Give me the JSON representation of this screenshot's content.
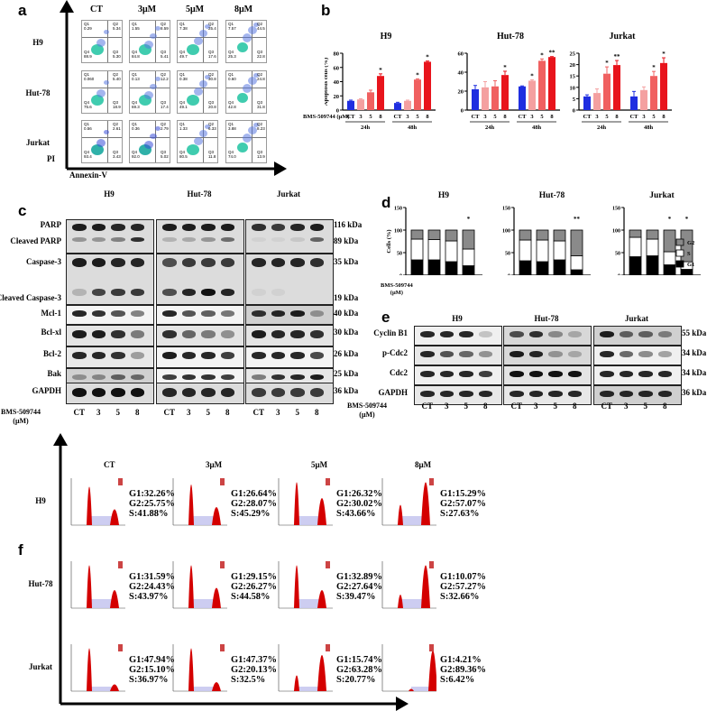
{
  "panels": {
    "a": {
      "label": "a",
      "columns": [
        "CT",
        "3μM",
        "5μM",
        "8μM"
      ],
      "rows": [
        "H9",
        "Hut-78",
        "Jurkat"
      ],
      "y_axis": "PI",
      "x_axis": "Annexin-V",
      "quadrants": [
        [
          {
            "Q1": "0.29",
            "Q2": "5.34",
            "Q3": "5.30",
            "Q4": "88.9"
          },
          {
            "Q1": "1.55",
            "Q2": "8.59",
            "Q3": "5.41",
            "Q4": "84.8"
          },
          {
            "Q1": "7.38",
            "Q2": "25.4",
            "Q3": "17.6",
            "Q4": "49.7"
          },
          {
            "Q1": "7.57",
            "Q2": "44.5",
            "Q3": "22.8",
            "Q4": "25.3"
          }
        ],
        [
          {
            "Q1": "0.060",
            "Q2": "5.40",
            "Q3": "18.9",
            "Q4": "75.6"
          },
          {
            "Q1": "0.13",
            "Q2": "12.2",
            "Q3": "17.4",
            "Q4": "69.3"
          },
          {
            "Q1": "0.38",
            "Q2": "30.8",
            "Q3": "20.8",
            "Q4": "49.1"
          },
          {
            "Q1": "0.60",
            "Q2": "24.8",
            "Q3": "31.8",
            "Q4": "42.8"
          }
        ],
        [
          {
            "Q1": "0.56",
            "Q2": "2.61",
            "Q3": "3.43",
            "Q4": "93.4"
          },
          {
            "Q1": "0.36",
            "Q2": "2.79",
            "Q3": "5.02",
            "Q4": "92.0"
          },
          {
            "Q1": "1.33",
            "Q2": "6.33",
            "Q3": "11.8",
            "Q4": "80.5"
          },
          {
            "Q1": "3.88",
            "Q2": "8.23",
            "Q3": "13.9",
            "Q4": "74.0"
          }
        ]
      ]
    },
    "b": {
      "label": "b",
      "treatment_label": "BMS-509744 (μM)"
    },
    "c": {
      "label": "c",
      "cell_lines": [
        "H9",
        "Hut-78",
        "Jurkat"
      ],
      "proteins": [
        "PARP",
        "Cleaved PARP",
        "Caspase-3",
        "Cleaved Caspase-3",
        "Mcl-1",
        "Bcl-xl",
        "Bcl-2",
        "Bak",
        "GAPDH"
      ],
      "kda": [
        "116 kDa",
        "89 kDa",
        "35 kDa",
        "19 kDa",
        "40 kDa",
        "30 kDa",
        "26 kDa",
        "25 kDa",
        "36 kDa"
      ],
      "treatment_label": "BMS-509744",
      "treatment_unit": "(μM)",
      "doses": [
        "CT",
        "3",
        "5",
        "8"
      ]
    },
    "d": {
      "label": "d",
      "ylabel": "Cells (%)",
      "treatment_label": "BMS-509744",
      "treatment_unit": "(μM)",
      "legend": [
        "G2",
        "S",
        "G1"
      ]
    },
    "e": {
      "label": "e",
      "cell_lines": [
        "H9",
        "Hut-78",
        "Jurkat"
      ],
      "proteins": [
        "Cyclin B1",
        "p-Cdc2",
        "Cdc2",
        "GAPDH"
      ],
      "kda": [
        "55 kDa",
        "34 kDa",
        "34 kDa",
        "36 kDa"
      ],
      "treatment_label": "BMS-509744",
      "treatment_unit": "(μM)",
      "doses": [
        "CT",
        "3",
        "5",
        "8"
      ]
    },
    "f": {
      "label": "f",
      "columns": [
        "CT",
        "3μM",
        "5μM",
        "8μM"
      ],
      "rows": [
        "H9",
        "Hut-78",
        "Jurkat"
      ],
      "values": [
        [
          [
            "G1:32.26%",
            "G2:25.75%",
            "S:41.88%"
          ],
          [
            "G1:26.64%",
            "G2:28.07%",
            "S:45.29%"
          ],
          [
            "G1:26.32%",
            "G2:30.02%",
            "S:43.66%"
          ],
          [
            "G1:15.29%",
            "G2:57.07%",
            "S:27.63%"
          ]
        ],
        [
          [
            "G1:31.59%",
            "G2:24.43%",
            "S:43.97%"
          ],
          [
            "G1:29.15%",
            "G2:26.27%",
            "S:44.58%"
          ],
          [
            "G1:32.89%",
            "G2:27.64%",
            "S:39.47%"
          ],
          [
            "G1:10.07%",
            "G2:57.27%",
            "S:32.66%"
          ]
        ],
        [
          [
            "G1:47.94%",
            "G2:15.10%",
            "S:36.97%"
          ],
          [
            "G1:47.37%",
            "G2:20.13%",
            "S:32.5%"
          ],
          [
            "G1:15.74%",
            "G2:63.28%",
            "S:20.77%"
          ],
          [
            "G1:4.21%",
            "G2:89.36%",
            "S:6.42%"
          ]
        ]
      ]
    }
  },
  "colors": {
    "ct": "#1f2ee0",
    "d3": "#f4a0a0",
    "d5": "#f06060",
    "d8": "#e8141c",
    "g2": "#8a8a8a",
    "s": "#ffffff",
    "g1": "#000000",
    "hist_fill": "#d40000",
    "hist_s": "#c8c8f0"
  },
  "chart_data": [
    {
      "type": "bar",
      "title": "H9",
      "ylabel": "Apoptosis cells (%)",
      "ylim": [
        0,
        80
      ],
      "yticks": [
        0,
        20,
        40,
        60,
        80
      ],
      "categories": [
        "CT",
        "3",
        "5",
        "8",
        "CT",
        "3",
        "5",
        "8"
      ],
      "groups": [
        "24h",
        "48h"
      ],
      "values": [
        13,
        15,
        25,
        48,
        10,
        13,
        43,
        68
      ],
      "errors": [
        1,
        1,
        3,
        3,
        1,
        1,
        1,
        1
      ],
      "significance": [
        "",
        "",
        "",
        "*",
        "",
        "",
        "*",
        "*"
      ]
    },
    {
      "type": "bar",
      "title": "Hut-78",
      "ylabel": "Apoptosis cells (%)",
      "ylim": [
        0,
        60
      ],
      "yticks": [
        0,
        20,
        40,
        60
      ],
      "categories": [
        "CT",
        "3",
        "5",
        "8",
        "CT",
        "3",
        "5",
        "8"
      ],
      "groups": [
        "24h",
        "48h"
      ],
      "values": [
        22,
        24,
        25,
        37,
        25,
        31,
        52,
        56
      ],
      "errors": [
        4,
        6,
        6,
        4,
        0.5,
        1,
        2,
        0.5
      ],
      "significance": [
        "",
        "",
        "",
        "*",
        "",
        "*",
        "*",
        "**"
      ]
    },
    {
      "type": "bar",
      "title": "Jurkat",
      "ylabel": "Apoptosis cells (%)",
      "ylim": [
        0,
        25
      ],
      "yticks": [
        0,
        5,
        10,
        15,
        20,
        25
      ],
      "categories": [
        "CT",
        "3",
        "5",
        "8",
        "CT",
        "3",
        "5",
        "8"
      ],
      "groups": [
        "24h",
        "48h"
      ],
      "values": [
        6,
        7.5,
        16,
        19.8,
        6,
        8.8,
        15,
        20.7
      ],
      "errors": [
        0.7,
        1.8,
        3,
        2,
        2.2,
        1.4,
        2,
        2.3
      ],
      "significance": [
        "",
        "",
        "*",
        "**",
        "",
        "",
        "*",
        "*"
      ]
    },
    {
      "type": "bar",
      "stacked": true,
      "title": "H9",
      "ylabel": "Cells (%)",
      "ylim": [
        0,
        150
      ],
      "yticks": [
        0,
        50,
        100,
        150
      ],
      "categories": [
        "CT",
        "3",
        "5",
        "8"
      ],
      "series": [
        {
          "name": "G1",
          "values": [
            34,
            34,
            30,
            21
          ]
        },
        {
          "name": "S",
          "values": [
            46,
            45,
            46,
            37
          ]
        },
        {
          "name": "G2",
          "values": [
            20,
            21,
            24,
            42
          ]
        }
      ],
      "significance": [
        "",
        "",
        "",
        "*"
      ]
    },
    {
      "type": "bar",
      "stacked": true,
      "title": "Hut-78",
      "ylabel": "Cells (%)",
      "ylim": [
        0,
        150
      ],
      "yticks": [
        0,
        50,
        100,
        150
      ],
      "categories": [
        "CT",
        "3",
        "5",
        "8"
      ],
      "series": [
        {
          "name": "G1",
          "values": [
            32,
            30,
            34,
            12
          ]
        },
        {
          "name": "S",
          "values": [
            46,
            48,
            42,
            31
          ]
        },
        {
          "name": "G2",
          "values": [
            22,
            22,
            24,
            57
          ]
        }
      ],
      "significance": [
        "",
        "",
        "",
        "**"
      ]
    },
    {
      "type": "bar",
      "stacked": true,
      "title": "Jurkat",
      "ylabel": "Cells (%)",
      "ylim": [
        0,
        150
      ],
      "yticks": [
        0,
        50,
        100,
        150
      ],
      "categories": [
        "CT",
        "3",
        "5",
        "8"
      ],
      "series": [
        {
          "name": "G1",
          "values": [
            41,
            43,
            23,
            13
          ]
        },
        {
          "name": "S",
          "values": [
            43,
            37,
            29,
            17
          ]
        },
        {
          "name": "G2",
          "values": [
            16,
            20,
            48,
            70
          ]
        }
      ],
      "significance": [
        "",
        "",
        "*",
        "*"
      ],
      "legend": [
        "G2",
        "S",
        "G1"
      ],
      "legend_position": "right"
    }
  ]
}
